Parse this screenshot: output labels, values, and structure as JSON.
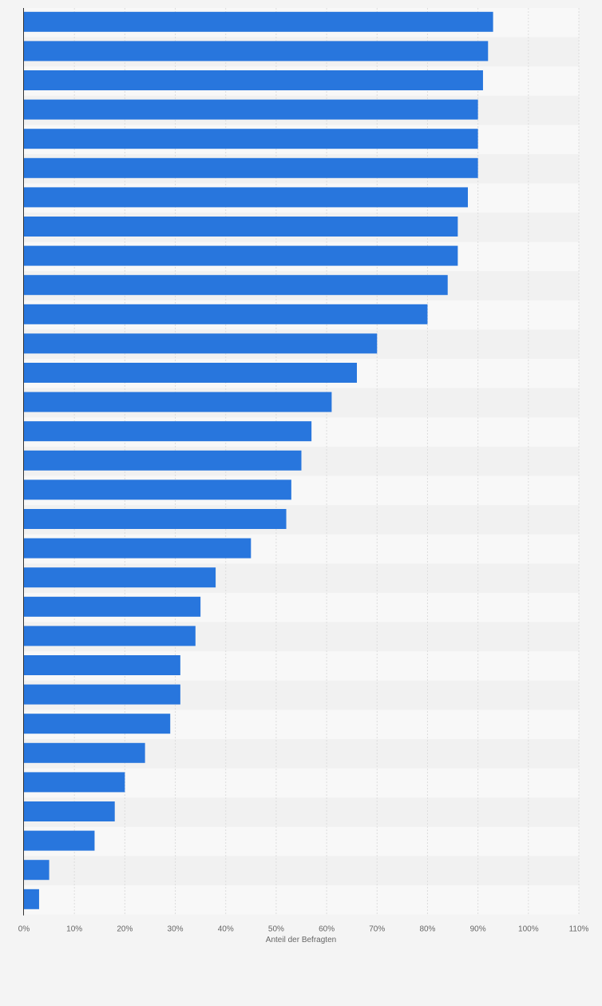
{
  "chart_data": {
    "type": "bar",
    "orientation": "horizontal",
    "title": "",
    "xlabel": "Anteil der Befragten",
    "ylabel": "",
    "xlim": [
      0,
      110
    ],
    "grid": true,
    "x_ticks": [
      "0%",
      "10%",
      "20%",
      "30%",
      "40%",
      "50%",
      "60%",
      "70%",
      "80%",
      "90%",
      "100%",
      "110%"
    ],
    "series": [
      {
        "values": [
          93,
          92,
          91,
          90,
          90,
          90,
          88,
          86,
          86,
          84,
          80,
          70,
          66,
          61,
          57,
          55,
          53,
          52,
          45,
          38,
          35,
          34,
          31,
          31,
          29,
          24,
          20,
          18,
          14,
          5,
          3
        ]
      }
    ],
    "colors": {
      "bar": "#2876dd",
      "background": "#f4f4f4",
      "band_light": "#f8f8f8",
      "band_dark": "#f1f1f1",
      "grid": "#dddddd",
      "axis": "#333333",
      "text": "#666666"
    }
  }
}
